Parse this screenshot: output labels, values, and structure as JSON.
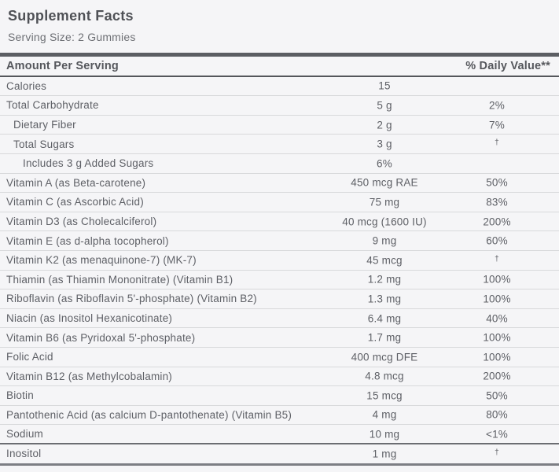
{
  "title": "Supplement Facts",
  "serving_size": "Serving Size: 2 Gummies",
  "table": {
    "header": {
      "amount_label": "Amount Per Serving",
      "daily_value_label": "% Daily Value**"
    },
    "rows": [
      {
        "label": "Calories",
        "amount": "15",
        "dv": "",
        "indent": 0
      },
      {
        "label": "Total Carbohydrate",
        "amount": "5 g",
        "dv": "2%",
        "indent": 0
      },
      {
        "label": "Dietary Fiber",
        "amount": "2 g",
        "dv": "7%",
        "indent": 1
      },
      {
        "label": "Total Sugars",
        "amount": "3 g",
        "dv": "†",
        "indent": 1
      },
      {
        "label": "Includes 3 g Added Sugars",
        "amount": "6%",
        "dv": "",
        "indent": 2
      },
      {
        "label": "Vitamin A (as Beta-carotene)",
        "amount": "450 mcg RAE",
        "dv": "50%",
        "indent": 0
      },
      {
        "label": "Vitamin C (as Ascorbic Acid)",
        "amount": "75 mg",
        "dv": "83%",
        "indent": 0
      },
      {
        "label": "Vitamin D3 (as Cholecalciferol)",
        "amount": "40 mcg (1600 IU)",
        "dv": "200%",
        "indent": 0
      },
      {
        "label": "Vitamin E (as d-alpha tocopherol)",
        "amount": "9 mg",
        "dv": "60%",
        "indent": 0
      },
      {
        "label": "Vitamin K2 (as menaquinone-7) (MK-7)",
        "amount": "45 mcg",
        "dv": "†",
        "indent": 0
      },
      {
        "label": "Thiamin (as Thiamin Mononitrate) (Vitamin B1)",
        "amount": "1.2 mg",
        "dv": "100%",
        "indent": 0
      },
      {
        "label": "Riboflavin (as Riboflavin 5'-phosphate) (Vitamin B2)",
        "amount": "1.3 mg",
        "dv": "100%",
        "indent": 0
      },
      {
        "label": "Niacin (as Inositol Hexanicotinate)",
        "amount": "6.4 mg",
        "dv": "40%",
        "indent": 0
      },
      {
        "label": "Vitamin B6 (as Pyridoxal 5'-phosphate)",
        "amount": "1.7 mg",
        "dv": "100%",
        "indent": 0
      },
      {
        "label": "Folic Acid",
        "amount": "400 mcg DFE",
        "dv": "100%",
        "indent": 0
      },
      {
        "label": "Vitamin B12 (as Methylcobalamin)",
        "amount": "4.8 mcg",
        "dv": "200%",
        "indent": 0
      },
      {
        "label": "Biotin",
        "amount": "15 mcg",
        "dv": "50%",
        "indent": 0
      },
      {
        "label": "Pantothenic Acid (as calcium D-pantothenate) (Vitamin B5)",
        "amount": "4 mg",
        "dv": "80%",
        "indent": 0
      },
      {
        "label": "Sodium",
        "amount": "10 mg",
        "dv": "<1%",
        "indent": 0,
        "divider": "heavy"
      },
      {
        "label": "Inositol",
        "amount": "1 mg",
        "dv": "†",
        "indent": 0,
        "divider": "end"
      }
    ]
  },
  "colors": {
    "background": "#f5f5f7",
    "text": "#5e6066",
    "title_text": "#4f5156",
    "thick_bar": "#5c5e63",
    "header_underline": "#54565b",
    "row_separator": "#d8d9db",
    "heavy_separator": "#6b6d72",
    "bottom_bar": "#7c7e84"
  }
}
